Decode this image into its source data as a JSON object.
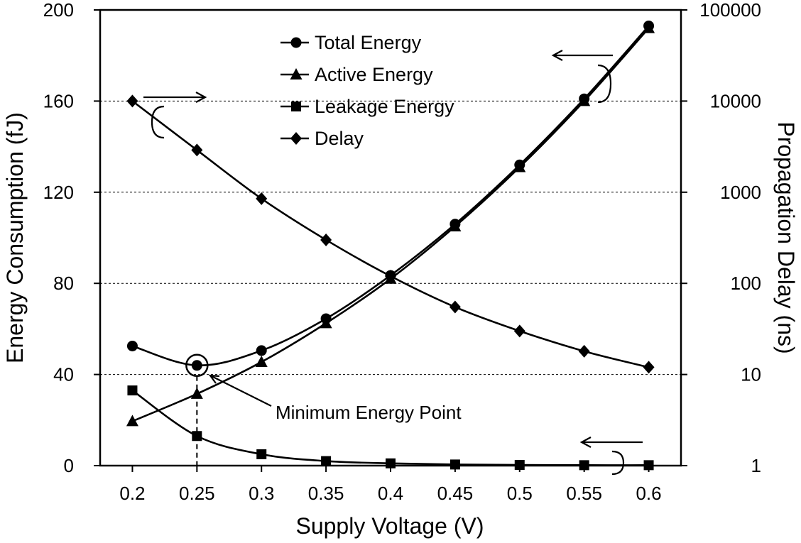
{
  "chart_data": {
    "type": "line",
    "xlabel": "Supply Voltage (V)",
    "ylabel": "Energy Consumption (fJ)",
    "ylabel_right": "Propagation Delay (ns)",
    "x": [
      0.2,
      0.25,
      0.3,
      0.35,
      0.4,
      0.45,
      0.5,
      0.55,
      0.6
    ],
    "x_tick_labels": [
      "0.2",
      "0.25",
      "0.3",
      "0.35",
      "0.4",
      "0.45",
      "0.5",
      "0.55",
      "0.6"
    ],
    "xlim": [
      0.175,
      0.625
    ],
    "ylim": [
      0,
      200
    ],
    "y_tick_labels": [
      "0",
      "40",
      "80",
      "120",
      "160",
      "200"
    ],
    "y_ticks": [
      0,
      40,
      80,
      120,
      160,
      200
    ],
    "y2lim": [
      1,
      100000
    ],
    "y2_scale": "log",
    "y2_tick_labels": [
      "1",
      "10",
      "100",
      "1000",
      "10000",
      "100000"
    ],
    "y2_ticks": [
      1,
      10,
      100,
      1000,
      10000,
      100000
    ],
    "grid": "horizontal-dashed",
    "legend_position": "top-center",
    "series": [
      {
        "name": "Total Energy",
        "axis": "left",
        "marker": "circle",
        "values": [
          52.5,
          44,
          50.5,
          64.5,
          83.5,
          106,
          132,
          161,
          193
        ]
      },
      {
        "name": "Active Energy",
        "axis": "left",
        "marker": "triangle",
        "values": [
          19.5,
          31.5,
          45.5,
          62.5,
          82,
          105,
          131,
          160,
          192
        ]
      },
      {
        "name": "Leakage Energy",
        "axis": "left",
        "marker": "square",
        "values": [
          33,
          13,
          5,
          2,
          1,
          0.5,
          0.3,
          0.2,
          0.2
        ]
      },
      {
        "name": "Delay",
        "axis": "right",
        "marker": "diamond",
        "values": [
          10000,
          2900,
          850,
          300,
          120,
          55,
          30,
          18,
          12
        ]
      }
    ],
    "annotations": [
      {
        "text": "Minimum Energy Point",
        "x": 0.25,
        "y": 44
      }
    ]
  }
}
